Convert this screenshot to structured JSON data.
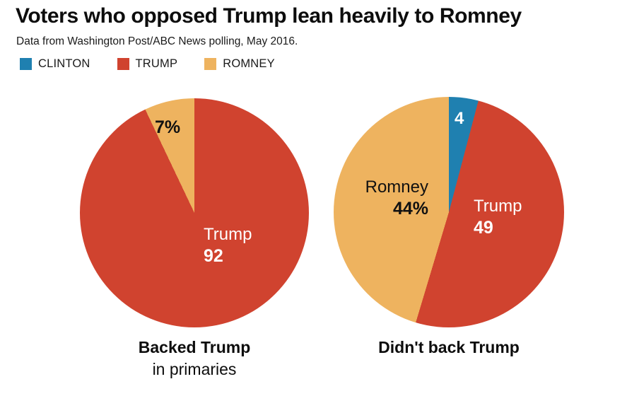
{
  "header": {
    "title": "Voters who opposed Trump lean heavily to Romney",
    "subtitle": "Data from Washington Post/ABC News polling, May 2016."
  },
  "legend": {
    "position": "top-left",
    "items": [
      {
        "label": "CLINTON",
        "color": "#1f80b0"
      },
      {
        "label": "TRUMP",
        "color": "#d0432f"
      },
      {
        "label": "ROMNEY",
        "color": "#eeb35f"
      }
    ]
  },
  "chart_data": [
    {
      "type": "pie",
      "caption_line1": "Backed Trump",
      "caption_line2": "in primaries",
      "start_angle_deg": 0,
      "direction": "clockwise",
      "slices": [
        {
          "name": "Trump",
          "value": 92,
          "display": "92",
          "color": "#d0432f",
          "label_color": "#ffffff"
        },
        {
          "name": "Romney",
          "value": 7,
          "display": "7%",
          "color": "#eeb35f",
          "label_color": "#111111"
        }
      ]
    },
    {
      "type": "pie",
      "caption_line1": "Didn't back Trump",
      "start_angle_deg": 0,
      "direction": "clockwise",
      "slices": [
        {
          "name": "Clinton",
          "value": 4,
          "display": "4",
          "color": "#1f80b0",
          "label_color": "#ffffff"
        },
        {
          "name": "Trump",
          "value": 49,
          "display": "49",
          "color": "#d0432f",
          "label_color": "#ffffff"
        },
        {
          "name": "Romney",
          "value": 44,
          "display": "44%",
          "color": "#eeb35f",
          "label_color": "#111111"
        }
      ]
    }
  ]
}
